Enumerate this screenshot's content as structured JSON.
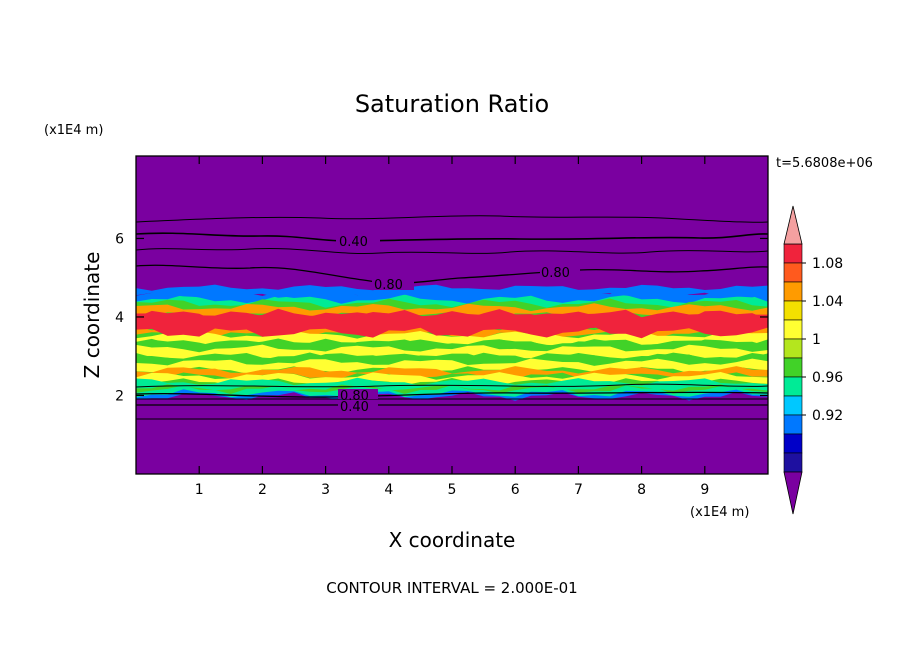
{
  "chart_data": {
    "type": "heatmap",
    "title": "Saturation Ratio",
    "xlabel": "X coordinate",
    "ylabel": "Z coordinate",
    "x_unit": "(x1E4 m)",
    "y_unit": "(x1E4 m)",
    "xlim": [
      0,
      10
    ],
    "ylim": [
      0,
      8.1
    ],
    "x_ticks": [
      "1",
      "2",
      "3",
      "4",
      "5",
      "6",
      "7",
      "8",
      "9"
    ],
    "y_ticks": [
      "2",
      "4",
      "6"
    ],
    "time_label": "t=5.6808e+06",
    "footer": "CONTOUR INTERVAL = 2.000E-01",
    "contour_labels": [
      "0.40",
      "0.80",
      "0.80",
      "0.80",
      "0.40"
    ],
    "colorbar": {
      "tick_labels": [
        "1.08",
        "1.04",
        "1",
        "0.96",
        "0.92"
      ],
      "colors": [
        "#f4a0a0",
        "#f0233c",
        "#ff5a1e",
        "#ff9b00",
        "#f3e000",
        "#ffff32",
        "#b4e61e",
        "#41d228",
        "#00eb96",
        "#00c8ff",
        "#0078ff",
        "#0000c8",
        "#1e10a0",
        "#7a00a0"
      ],
      "extend": "both"
    },
    "palette": {
      "background": "#7a00a0",
      "red": "#f0233c",
      "orange": "#ff9b00",
      "yellow": "#ffff32",
      "green": "#41d228",
      "cyan": "#00eb96",
      "blue": "#0078ff"
    },
    "profile_z": [
      {
        "z": 0.0,
        "ratio": 0.3
      },
      {
        "z": 1.5,
        "ratio": 0.42
      },
      {
        "z": 2.0,
        "ratio": 0.95
      },
      {
        "z": 2.5,
        "ratio": 1.0
      },
      {
        "z": 3.0,
        "ratio": 1.02
      },
      {
        "z": 3.5,
        "ratio": 1.05
      },
      {
        "z": 4.0,
        "ratio": 1.06
      },
      {
        "z": 4.4,
        "ratio": 0.97
      },
      {
        "z": 4.7,
        "ratio": 0.85
      },
      {
        "z": 5.5,
        "ratio": 0.6
      },
      {
        "z": 6.2,
        "ratio": 0.4
      },
      {
        "z": 8.1,
        "ratio": 0.25
      }
    ]
  }
}
